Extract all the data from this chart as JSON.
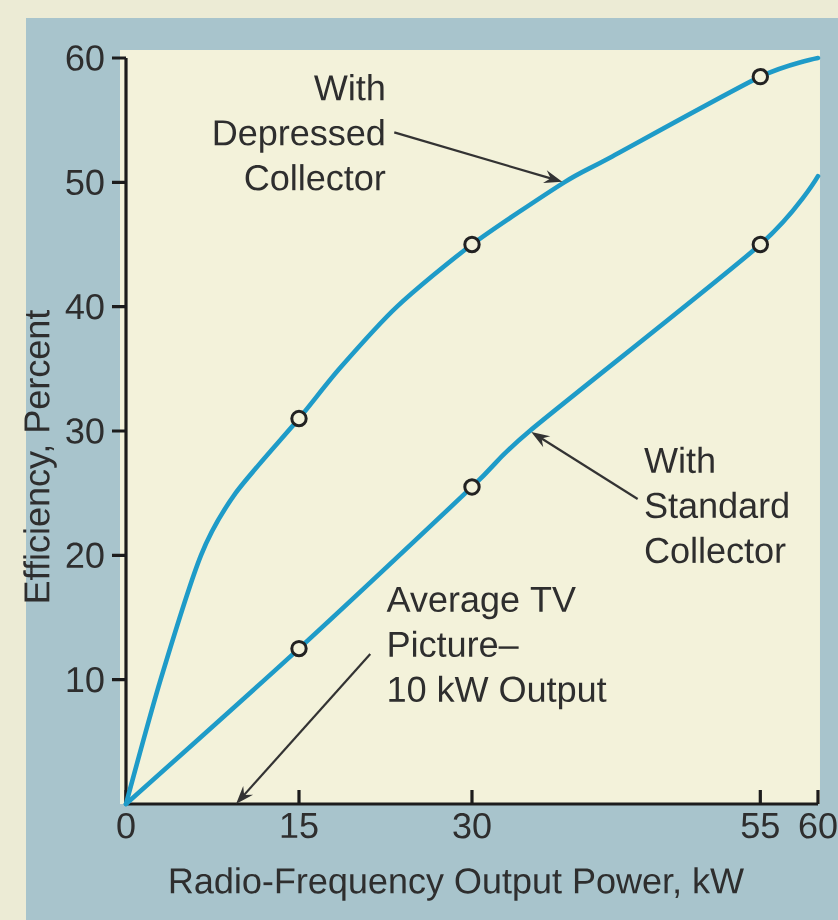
{
  "chart_data": {
    "type": "line",
    "xlabel": "Radio-Frequency Output Power, kW",
    "ylabel": "Efficiency, Percent",
    "xlim": [
      0,
      60
    ],
    "ylim": [
      0,
      60
    ],
    "xticks": [
      0,
      15,
      30,
      55,
      60
    ],
    "yticks": [
      10,
      20,
      30,
      40,
      50,
      60
    ],
    "series": [
      {
        "name": "With Depressed Collector",
        "color": "#1e9bc8",
        "x": [
          0,
          3,
          6.5,
          9.5,
          15,
          18.5,
          23.5,
          30,
          38,
          42,
          55,
          60
        ],
        "values": [
          0,
          10,
          20,
          25,
          31,
          35,
          40,
          45,
          50,
          52,
          58.5,
          60
        ]
      },
      {
        "name": "With Standard Collector",
        "color": "#1e9bc8",
        "x": [
          0,
          15,
          30,
          35,
          55,
          60
        ],
        "values": [
          0,
          12.5,
          25.5,
          30,
          45,
          50.5
        ]
      },
      {
        "type": "scatter",
        "color": "#222222",
        "marker": "circle",
        "x": [
          15,
          30,
          55
        ],
        "values": [
          31,
          45,
          58.5
        ]
      },
      {
        "type": "scatter",
        "color": "#222222",
        "marker": "circle",
        "x": [
          15,
          30,
          55
        ],
        "values": [
          12.5,
          25.5,
          45
        ]
      }
    ],
    "annotations": [
      "Average TV Picture– 10 kW Output"
    ]
  }
}
